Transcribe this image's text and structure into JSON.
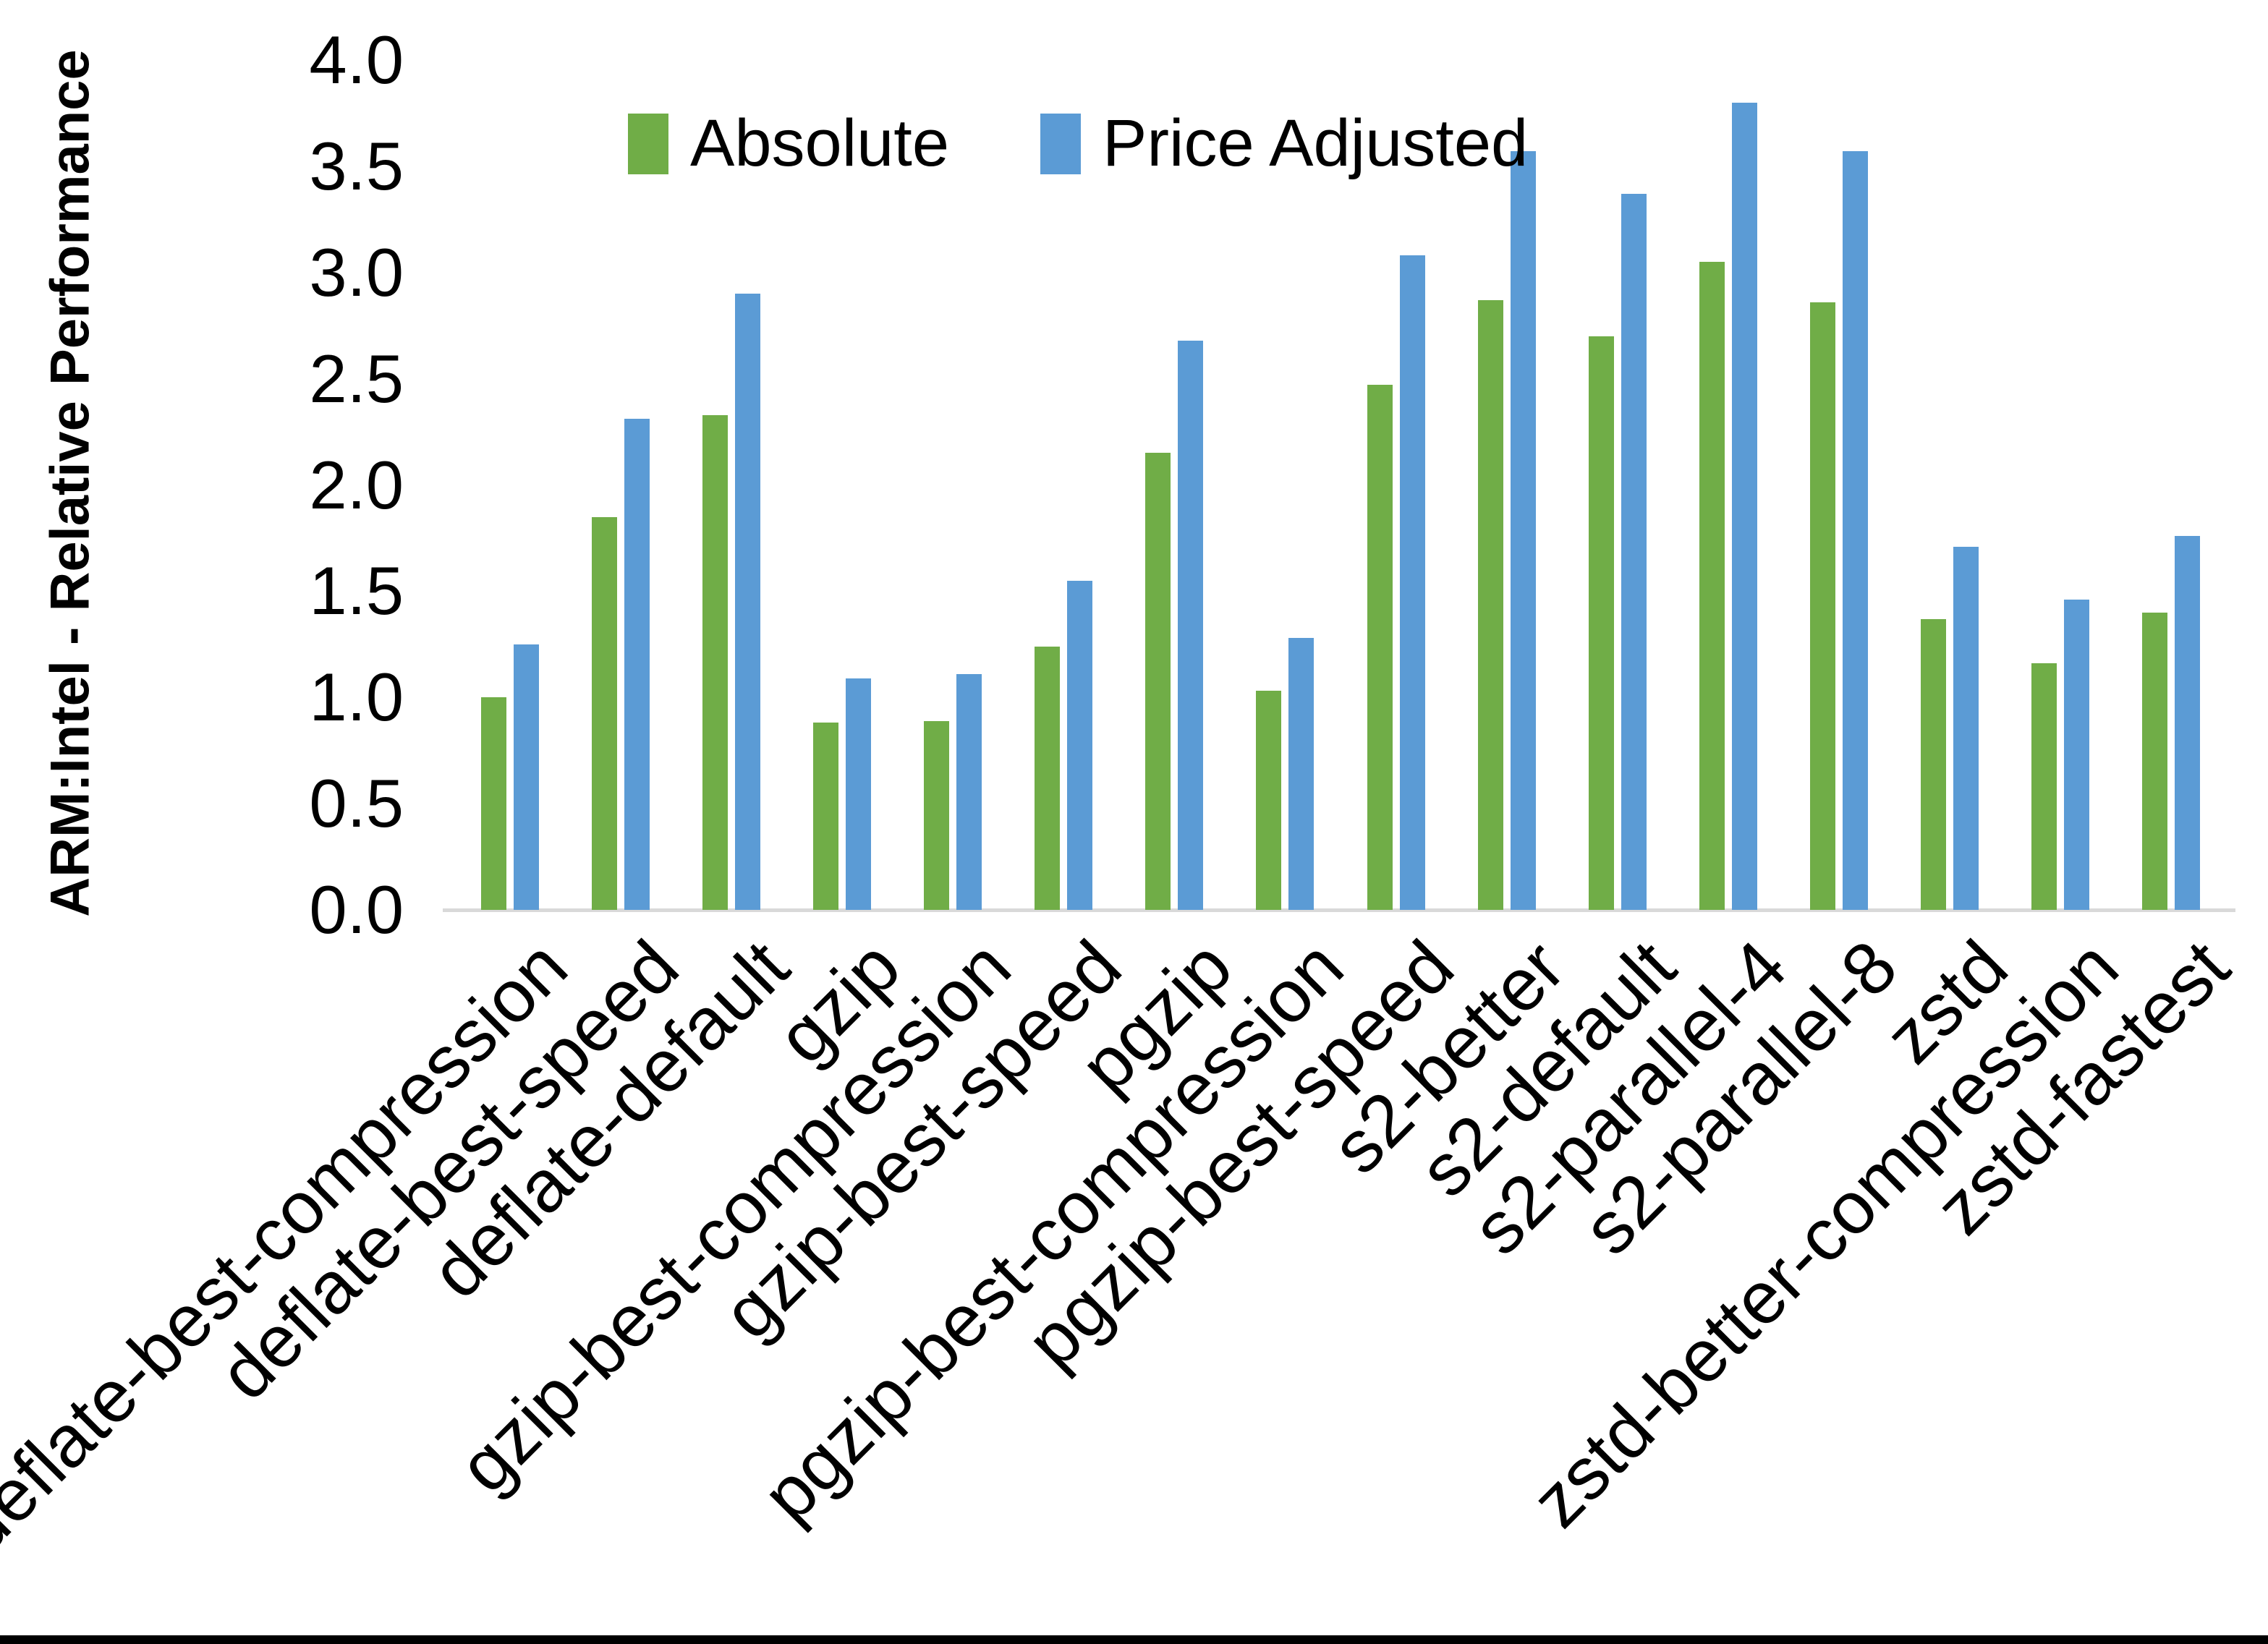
{
  "chart_data": {
    "type": "bar",
    "title": "",
    "ylabel": "ARM:Intel - Relative Performance",
    "xlabel": "",
    "ylim": [
      0.0,
      4.0
    ],
    "ytick_step": 0.5,
    "ytick_labels": [
      "0.0",
      "0.5",
      "1.0",
      "1.5",
      "2.0",
      "2.5",
      "3.0",
      "3.5",
      "4.0"
    ],
    "grid": false,
    "legend_position": "top-center",
    "categories": [
      "deflate-best-compression",
      "deflate-best-speed",
      "deflate-default",
      "gzip",
      "gzip-best-compression",
      "gzip-best-speed",
      "pgzip",
      "pgzip-best-compression",
      "pgzip-best-speed",
      "s2-better",
      "s2-default",
      "s2-parallel-4",
      "s2-parallel-8",
      "zstd",
      "zstd-better-compression",
      "zstd-fastest"
    ],
    "series": [
      {
        "name": "Absolute",
        "color": "#70AD47",
        "values": [
          1.0,
          1.85,
          2.33,
          0.88,
          0.89,
          1.24,
          2.15,
          1.03,
          2.47,
          2.87,
          2.7,
          3.05,
          2.86,
          1.37,
          1.16,
          1.4
        ]
      },
      {
        "name": "Price Adjusted",
        "color": "#5B9BD5",
        "values": [
          1.25,
          2.31,
          2.9,
          1.09,
          1.11,
          1.55,
          2.68,
          1.28,
          3.08,
          3.57,
          3.37,
          3.8,
          3.57,
          1.71,
          1.46,
          1.76
        ]
      }
    ],
    "axis_line_color": "#D9D9D9"
  },
  "figure": {
    "bottom_border_color": "#000000"
  }
}
